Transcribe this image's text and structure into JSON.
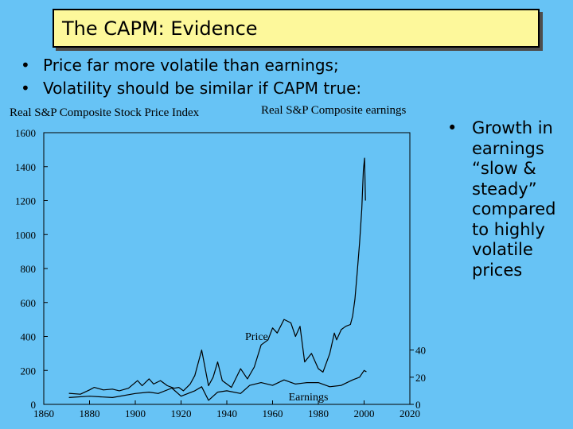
{
  "slide": {
    "title": "The CAPM: Evidence",
    "bullets": [
      "Price far more volatile than earnings;",
      "Volatility should be similar if CAPM true:"
    ],
    "side_note": "Growth in earnings “slow & steady” compared to highly volatile prices",
    "colors": {
      "background": "#67c3f5",
      "title_box": "#fdf89b"
    }
  },
  "chart_data": {
    "type": "line",
    "title_left": "Real S&P Composite Stock Price Index",
    "title_right": "Real S&P Composite earnings",
    "xlim": [
      1860,
      2020
    ],
    "x_ticks": [
      1860,
      1880,
      1900,
      1920,
      1940,
      1960,
      1980,
      2000,
      2020
    ],
    "ylim_left": [
      0,
      1600
    ],
    "y_ticks_left": [
      0,
      200,
      400,
      600,
      800,
      1000,
      1200,
      1400,
      1600
    ],
    "ylim_right": [
      0,
      200
    ],
    "y_ticks_right": [
      0,
      20,
      40
    ],
    "series": [
      {
        "name": "Price",
        "axis": "left",
        "x": [
          1871,
          1876,
          1880,
          1882,
          1886,
          1890,
          1893,
          1897,
          1901,
          1903,
          1906,
          1908,
          1911,
          1914,
          1917,
          1919,
          1921,
          1924,
          1926,
          1929,
          1932,
          1934,
          1936,
          1938,
          1942,
          1946,
          1949,
          1952,
          1955,
          1958,
          1960,
          1962,
          1965,
          1968,
          1970,
          1972,
          1974,
          1977,
          1980,
          1982,
          1985,
          1987,
          1988,
          1990,
          1992,
          1994,
          1995,
          1996,
          1997,
          1998,
          1999,
          1999.7,
          2000.2,
          2000.6
        ],
        "y": [
          65,
          60,
          85,
          100,
          85,
          90,
          80,
          95,
          140,
          110,
          150,
          120,
          140,
          110,
          95,
          100,
          80,
          120,
          170,
          320,
          110,
          160,
          250,
          140,
          100,
          210,
          150,
          220,
          350,
          380,
          450,
          420,
          500,
          480,
          400,
          460,
          250,
          300,
          210,
          190,
          300,
          420,
          380,
          440,
          460,
          470,
          520,
          620,
          780,
          950,
          1150,
          1380,
          1450,
          1200
        ]
      },
      {
        "name": "Earnings",
        "axis": "right",
        "x": [
          1871,
          1880,
          1890,
          1900,
          1906,
          1910,
          1916,
          1920,
          1926,
          1929,
          1932,
          1936,
          1940,
          1946,
          1950,
          1955,
          1960,
          1965,
          1970,
          1975,
          1980,
          1985,
          1990,
          1995,
          1998,
          2000,
          2001
        ],
        "y": [
          5,
          6,
          5,
          8,
          9,
          8,
          12,
          6,
          10,
          13,
          3,
          9,
          10,
          8,
          14,
          16,
          14,
          18,
          15,
          16,
          16,
          13,
          14,
          18,
          20,
          25,
          24
        ]
      }
    ],
    "annotations": {
      "price_label": "Price",
      "earnings_label": "Earnings"
    }
  }
}
